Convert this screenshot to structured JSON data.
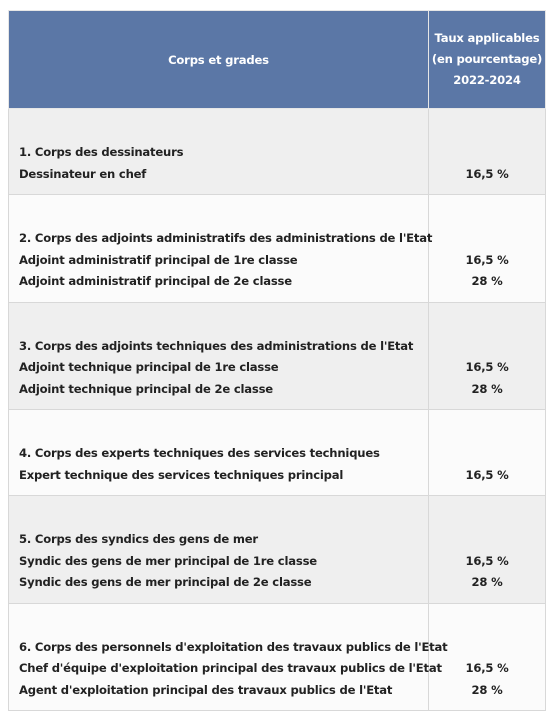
{
  "table": {
    "headers": {
      "grade": "Corps et grades",
      "rate": [
        "Taux applicables",
        "(en pourcentage)",
        "2022-2024"
      ]
    },
    "groups": [
      {
        "title": "1. Corps des dessinateurs",
        "items": [
          {
            "grade": "Dessinateur en chef",
            "rate": "16,5 %"
          }
        ]
      },
      {
        "title": "2. Corps des adjoints administratifs des administrations de l'Etat",
        "items": [
          {
            "grade": "Adjoint administratif principal de 1re classe",
            "rate": "16,5 %"
          },
          {
            "grade": "Adjoint administratif principal de 2e classe",
            "rate": "28 %"
          }
        ]
      },
      {
        "title": "3. Corps des adjoints techniques des administrations de l'Etat",
        "items": [
          {
            "grade": "Adjoint technique principal de 1re classe",
            "rate": "16,5 %"
          },
          {
            "grade": "Adjoint technique principal de 2e classe",
            "rate": "28 %"
          }
        ]
      },
      {
        "title": "4. Corps des experts techniques des services techniques",
        "items": [
          {
            "grade": "Expert technique des services techniques principal",
            "rate": "16,5 %"
          }
        ]
      },
      {
        "title": "5. Corps des syndics des gens de mer",
        "items": [
          {
            "grade": "Syndic des gens de mer principal de 1re classe",
            "rate": "16,5 %"
          },
          {
            "grade": "Syndic des gens de mer principal de 2e classe",
            "rate": "28 %"
          }
        ]
      },
      {
        "title": "6. Corps des personnels d'exploitation des travaux publics de l'Etat",
        "items": [
          {
            "grade": "Chef d'équipe d'exploitation principal des travaux publics de l'Etat",
            "rate": "16,5 %"
          },
          {
            "grade": "Agent d'exploitation principal des travaux publics de l'Etat",
            "rate": "28 %"
          }
        ]
      }
    ]
  }
}
